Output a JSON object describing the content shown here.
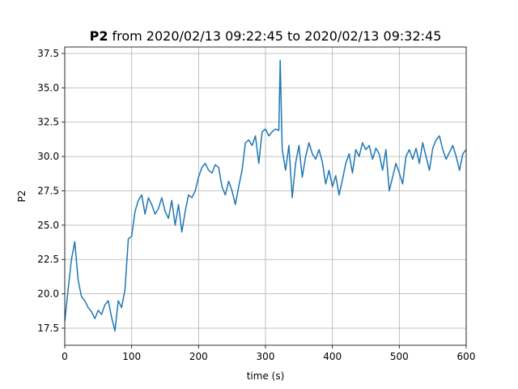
{
  "chart_data": {
    "type": "line",
    "title_name": "P2",
    "title": "from 2020/02/13 09:22:45 to 2020/02/13 09:32:45",
    "xlabel": "time (s)",
    "ylabel": "P2",
    "x": [
      0,
      5,
      10,
      15,
      20,
      25,
      30,
      35,
      40,
      45,
      50,
      55,
      60,
      65,
      70,
      75,
      80,
      85,
      90,
      95,
      100,
      105,
      110,
      115,
      120,
      125,
      130,
      135,
      140,
      145,
      150,
      155,
      160,
      165,
      170,
      175,
      180,
      185,
      190,
      195,
      200,
      205,
      210,
      215,
      220,
      225,
      230,
      235,
      240,
      245,
      250,
      255,
      260,
      265,
      270,
      275,
      280,
      285,
      290,
      295,
      300,
      305,
      310,
      315,
      320,
      322,
      325,
      330,
      335,
      340,
      345,
      350,
      355,
      360,
      365,
      370,
      375,
      380,
      385,
      390,
      395,
      400,
      405,
      410,
      415,
      420,
      425,
      430,
      435,
      440,
      445,
      450,
      455,
      460,
      465,
      470,
      475,
      480,
      485,
      490,
      495,
      500,
      505,
      510,
      515,
      520,
      525,
      530,
      535,
      540,
      545,
      550,
      555,
      560,
      565,
      570,
      575,
      580,
      585,
      590,
      595,
      600
    ],
    "series": [
      {
        "name": "P2",
        "color": "#1f77b4",
        "values": [
          18.0,
          20.3,
          22.5,
          23.8,
          21.0,
          19.8,
          19.5,
          19.0,
          18.7,
          18.2,
          18.8,
          18.5,
          19.2,
          19.5,
          18.3,
          17.3,
          19.5,
          19.0,
          20.3,
          24.0,
          24.2,
          26.0,
          26.8,
          27.2,
          25.8,
          27.0,
          26.5,
          25.8,
          26.2,
          27.0,
          26.0,
          25.5,
          26.8,
          25.0,
          26.5,
          24.5,
          26.0,
          27.2,
          27.0,
          27.5,
          28.5,
          29.2,
          29.5,
          29.0,
          28.8,
          29.4,
          29.2,
          27.8,
          27.2,
          28.2,
          27.5,
          26.5,
          27.8,
          29.0,
          31.0,
          31.2,
          30.8,
          31.5,
          29.5,
          31.8,
          32.0,
          31.5,
          31.8,
          32.0,
          31.9,
          37.0,
          30.5,
          29.0,
          30.8,
          27.0,
          29.5,
          30.8,
          28.5,
          30.0,
          31.0,
          30.2,
          29.8,
          30.5,
          29.6,
          28.0,
          29.0,
          27.8,
          28.6,
          27.2,
          28.3,
          29.5,
          30.2,
          28.8,
          30.5,
          30.0,
          31.0,
          30.5,
          30.8,
          29.8,
          30.6,
          30.2,
          29.0,
          30.5,
          27.5,
          28.5,
          29.5,
          28.8,
          28.0,
          30.0,
          30.5,
          29.8,
          30.6,
          29.5,
          31.0,
          30.0,
          29.0,
          30.6,
          31.2,
          31.5,
          30.5,
          29.8,
          30.3,
          30.8,
          30.0,
          29.0,
          30.2,
          30.5
        ]
      }
    ],
    "xlim": [
      0,
      600
    ],
    "xticks": [
      0,
      100,
      200,
      300,
      400,
      500,
      600
    ],
    "ylim": [
      16.26,
      37.97
    ],
    "yticks": [
      17.5,
      {
        "value": 20,
        "label": "20.0"
      },
      22.5,
      {
        "value": 25,
        "label": "25.0"
      },
      27.5,
      {
        "value": 30,
        "label": "30.0"
      },
      32.5,
      {
        "value": 35,
        "label": "35.0"
      },
      37.5
    ],
    "grid": true
  }
}
